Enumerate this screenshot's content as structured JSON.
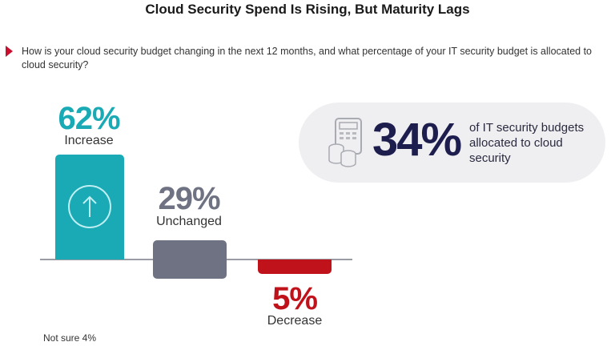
{
  "title": "Cloud Security Spend Is Rising, But Maturity Lags",
  "question": "How is your cloud security budget changing in the next 12 months, and what percentage of your IT security budget is allocated to cloud security?",
  "chart_data": {
    "type": "bar",
    "categories": [
      "Increase",
      "Unchanged",
      "Decrease"
    ],
    "values": [
      62,
      29,
      5
    ],
    "value_labels": [
      "62%",
      "29%",
      "5%"
    ],
    "colors": [
      "#19aab5",
      "#6f7282",
      "#c0121a"
    ],
    "footnote": "Not sure 4%"
  },
  "callout": {
    "value": "34%",
    "text": "of IT security budgets allocated to cloud security",
    "icon": "calculator-coins-icon"
  },
  "colors": {
    "accent": "#c8102e",
    "navy": "#1d1d4e"
  }
}
